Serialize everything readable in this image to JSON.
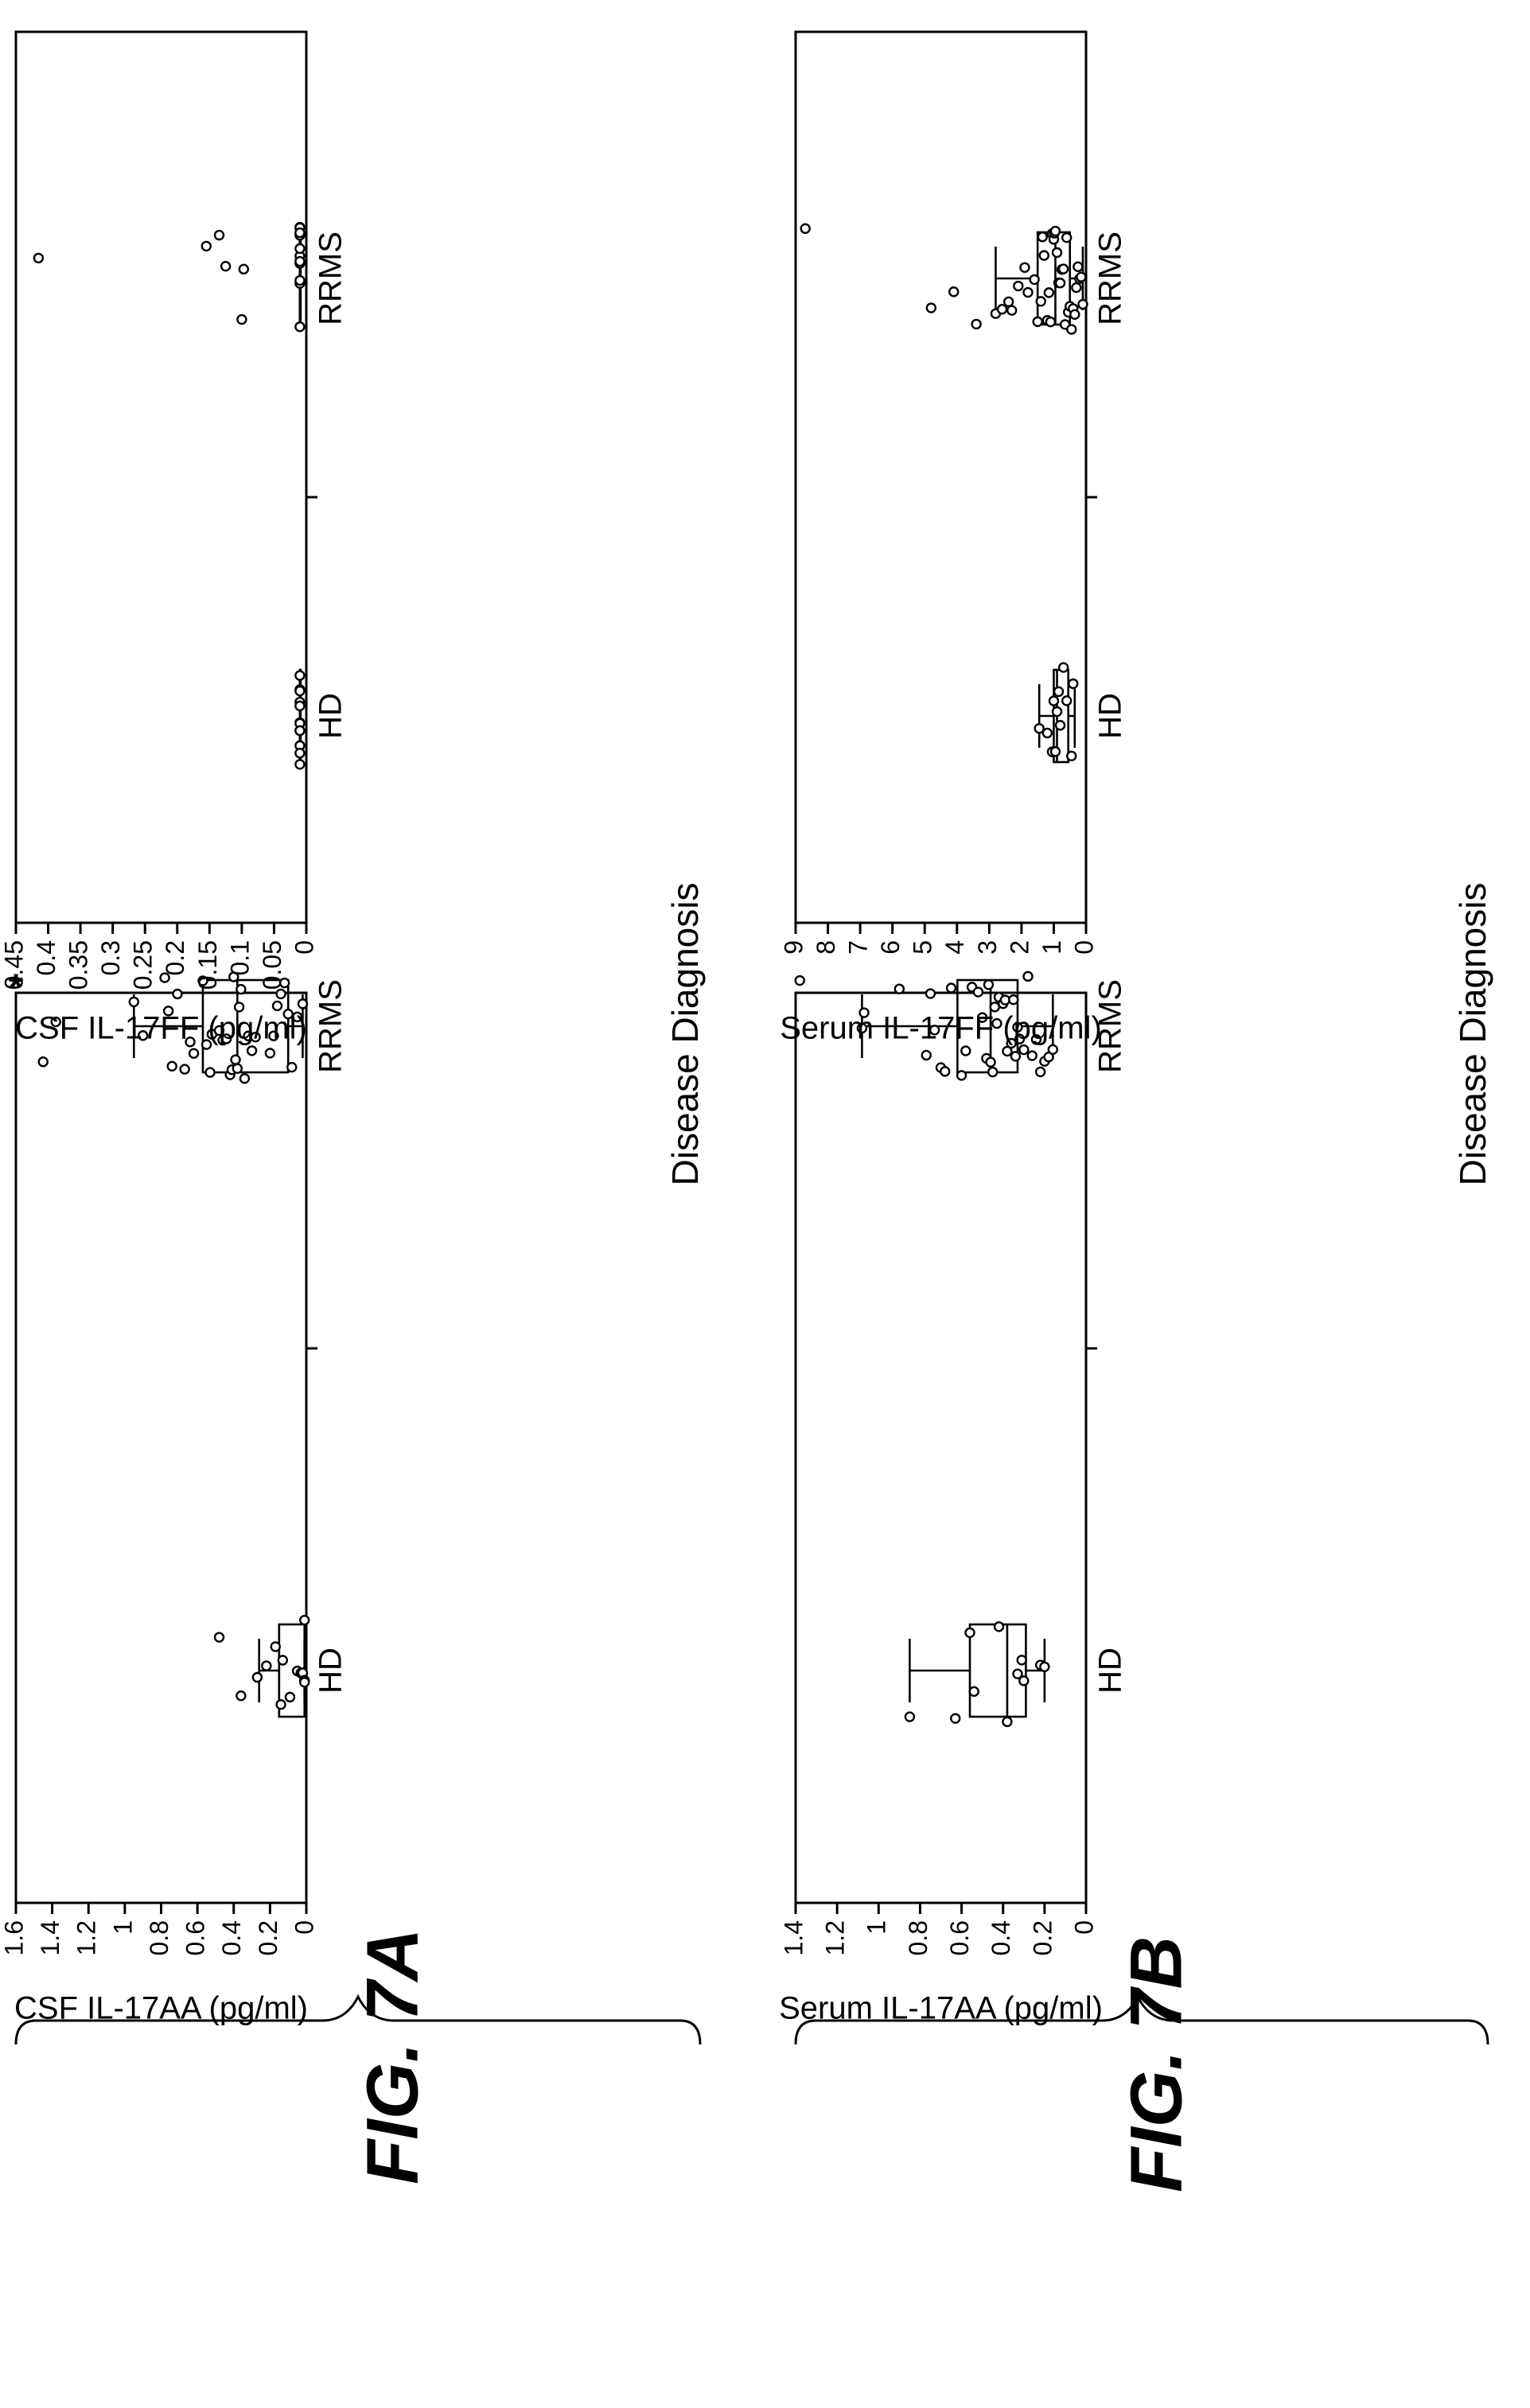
{
  "figure_labels": {
    "fig_7a": "FIG. 7A",
    "fig_7b": "FIG. 7B"
  },
  "shared_xlabel": "Disease Diagnosis",
  "chart_data": [
    {
      "id": "csf_il17aa",
      "type": "box",
      "ylabel": "CSF IL-17AA (pg/ml)",
      "xlabel": "Disease Diagnosis",
      "categories": [
        "HD",
        "RRMS"
      ],
      "ylim": [
        0,
        1.6
      ],
      "yticks": [
        0,
        0.2,
        0.4,
        0.6,
        0.8,
        1,
        1.2,
        1.4,
        1.6
      ],
      "ytick_labels": [
        "0",
        "0.2",
        "0.4",
        "0.6",
        "0.8",
        "1",
        "1.2",
        "1.4",
        "1.6"
      ],
      "boxes": [
        {
          "category": "HD",
          "whisker_low": 0.01,
          "q1": 0.01,
          "median": 0.15,
          "q3": 0.15,
          "whisker_high": 0.26,
          "points": [
            0.48,
            0.36,
            0.27,
            0.22,
            0.17,
            0.14,
            0.09,
            0.05,
            0.03,
            0.02,
            0.01,
            0.01,
            0.01,
            0.13
          ]
        },
        {
          "category": "RRMS",
          "whisker_low": 0.02,
          "q1": 0.1,
          "median": 0.38,
          "q3": 0.57,
          "whisker_high": 0.95,
          "points": [
            1.45,
            1.38,
            0.95,
            0.9,
            0.78,
            0.76,
            0.74,
            0.71,
            0.67,
            0.64,
            0.62,
            0.57,
            0.55,
            0.53,
            0.52,
            0.48,
            0.46,
            0.44,
            0.42,
            0.41,
            0.4,
            0.39,
            0.38,
            0.37,
            0.36,
            0.34,
            0.32,
            0.3,
            0.28,
            0.2,
            0.18,
            0.16,
            0.14,
            0.12,
            0.1,
            0.08,
            0.05,
            0.02
          ],
          "annotation": {
            "symbol": "*",
            "value": 1.6
          }
        }
      ]
    },
    {
      "id": "csf_il17ff",
      "type": "box",
      "ylabel": "CSF IL-17FF (pg/ml)",
      "xlabel": "Disease Diagnosis",
      "categories": [
        "HD",
        "RRMS"
      ],
      "ylim": [
        0,
        0.45
      ],
      "yticks": [
        0,
        0.05,
        0.1,
        0.15,
        0.2,
        0.25,
        0.3,
        0.35,
        0.4,
        0.45
      ],
      "ytick_labels": [
        "0",
        "0.05",
        "0.1",
        "0.15",
        "0.2",
        "0.25",
        "0.3",
        "0.35",
        "0.4",
        "0.45"
      ],
      "boxes": [
        {
          "category": "HD",
          "whisker_low": 0.01,
          "q1": 0.01,
          "median": 0.01,
          "q3": 0.01,
          "whisker_high": 0.01,
          "points": [
            0.01,
            0.01,
            0.01,
            0.01,
            0.01,
            0.01,
            0.01,
            0.01,
            0.01,
            0.01,
            0.01,
            0.01
          ]
        },
        {
          "category": "RRMS",
          "whisker_low": 0.01,
          "q1": 0.01,
          "median": 0.01,
          "q3": 0.01,
          "whisker_high": 0.01,
          "points": [
            0.415,
            0.155,
            0.135,
            0.125,
            0.1,
            0.097,
            0.01,
            0.01,
            0.01,
            0.01,
            0.01,
            0.01,
            0.01,
            0.01,
            0.01,
            0.01,
            0.01,
            0.01
          ]
        }
      ]
    },
    {
      "id": "serum_il17aa",
      "type": "box",
      "ylabel": "Serum IL-17AA (pg/ml)",
      "xlabel": "Disease Diagnosis",
      "categories": [
        "HD",
        "RRMS"
      ],
      "ylim": [
        0,
        1.4
      ],
      "yticks": [
        0,
        0.2,
        0.4,
        0.6,
        0.8,
        1,
        1.2,
        1.4
      ],
      "ytick_labels": [
        "0",
        "0.2",
        "0.4",
        "0.6",
        "0.8",
        "1",
        "1.2",
        "1.4"
      ],
      "boxes": [
        {
          "category": "HD",
          "whisker_low": 0.2,
          "q1": 0.29,
          "median": 0.38,
          "q3": 0.56,
          "whisker_high": 0.85,
          "points": [
            0.85,
            0.63,
            0.56,
            0.54,
            0.42,
            0.38,
            0.33,
            0.31,
            0.3,
            0.22,
            0.2
          ]
        },
        {
          "category": "RRMS",
          "whisker_low": 0.16,
          "q1": 0.33,
          "median": 0.46,
          "q3": 0.62,
          "whisker_high": 1.08,
          "points": [
            1.38,
            1.08,
            1.07,
            0.9,
            0.77,
            0.75,
            0.73,
            0.7,
            0.68,
            0.65,
            0.6,
            0.58,
            0.55,
            0.52,
            0.5,
            0.48,
            0.47,
            0.46,
            0.45,
            0.44,
            0.43,
            0.42,
            0.4,
            0.39,
            0.38,
            0.36,
            0.35,
            0.34,
            0.33,
            0.32,
            0.3,
            0.28,
            0.26,
            0.24,
            0.22,
            0.2,
            0.18,
            0.16
          ]
        }
      ]
    },
    {
      "id": "serum_il17ff",
      "type": "box",
      "ylabel": "Serum IL-17FF (pg/ml)",
      "xlabel": "Disease Diagnosis",
      "categories": [
        "HD",
        "RRMS"
      ],
      "ylim": [
        0,
        9
      ],
      "yticks": [
        0,
        1,
        2,
        3,
        4,
        5,
        6,
        7,
        8,
        9
      ],
      "ytick_labels": [
        "0",
        "1",
        "2",
        "3",
        "4",
        "5",
        "6",
        "7",
        "8",
        "9"
      ],
      "boxes": [
        {
          "category": "HD",
          "whisker_low": 0.35,
          "q1": 0.55,
          "median": 0.9,
          "q3": 1.0,
          "whisker_high": 1.45,
          "points": [
            1.45,
            1.2,
            1.05,
            1.0,
            0.95,
            0.9,
            0.85,
            0.8,
            0.7,
            0.6,
            0.45,
            0.4
          ]
        },
        {
          "category": "RRMS",
          "whisker_low": 0.1,
          "q1": 0.5,
          "median": 0.95,
          "q3": 1.5,
          "whisker_high": 2.8,
          "points": [
            8.7,
            4.8,
            4.1,
            3.4,
            2.8,
            2.6,
            2.4,
            2.3,
            2.1,
            1.9,
            1.8,
            1.6,
            1.5,
            1.4,
            1.35,
            1.3,
            1.2,
            1.15,
            1.1,
            1.05,
            1.0,
            0.98,
            0.95,
            0.9,
            0.85,
            0.8,
            0.75,
            0.7,
            0.65,
            0.6,
            0.55,
            0.5,
            0.45,
            0.4,
            0.35,
            0.3,
            0.25,
            0.2,
            0.15,
            0.1
          ]
        }
      ]
    }
  ]
}
